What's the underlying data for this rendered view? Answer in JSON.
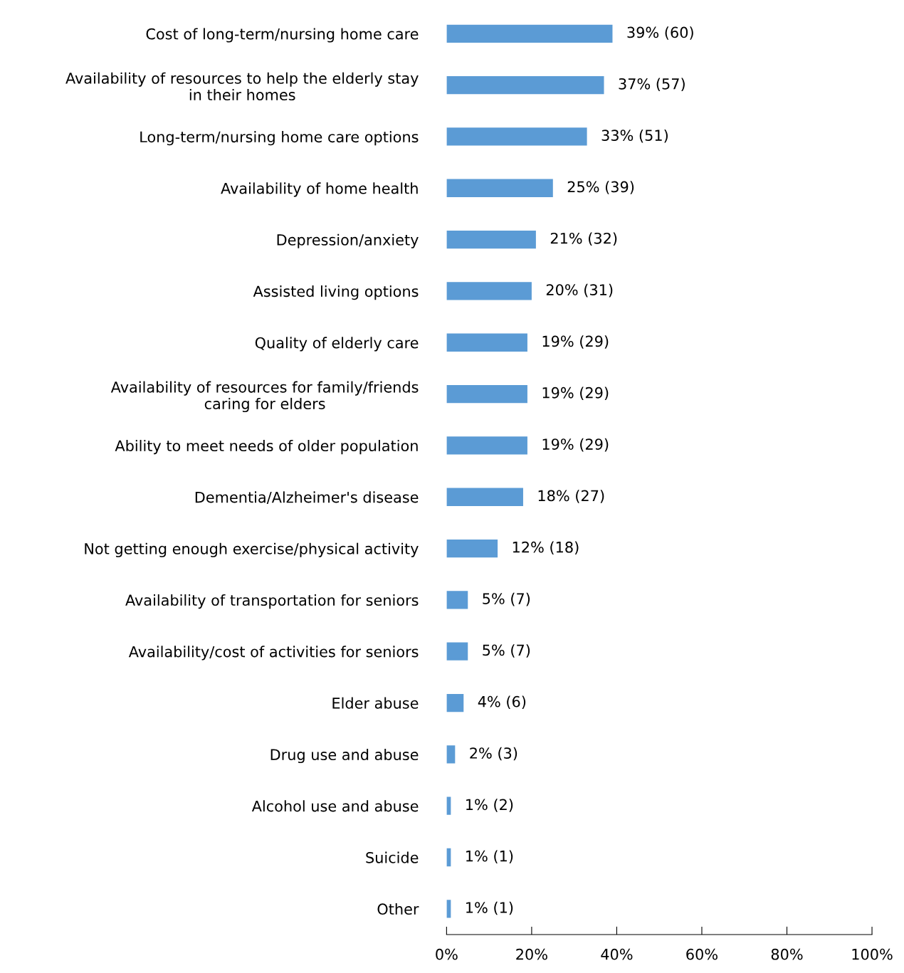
{
  "chart_data": {
    "type": "bar",
    "orientation": "horizontal",
    "categories": [
      "Cost of long-term/nursing home care",
      "Availability of resources to help the elderly stay\nin their homes",
      "Long-term/nursing home care options",
      "Availability of home health",
      "Depression/anxiety",
      "Assisted living options",
      "Quality of elderly care",
      "Availability of resources for family/friends\ncaring for elders",
      "Ability to meet needs of older population",
      "Dementia/Alzheimer's disease",
      "Not getting enough exercise/physical activity",
      "Availability of transportation for seniors",
      "Availability/cost of activities for seniors",
      "Elder abuse",
      "Drug use and abuse",
      "Alcohol use and abuse",
      "Suicide",
      "Other"
    ],
    "values": [
      39,
      37,
      33,
      25,
      21,
      20,
      19,
      19,
      19,
      18,
      12,
      5,
      5,
      4,
      2,
      1,
      1,
      1
    ],
    "value_labels": [
      "39% (60)",
      "37% (57)",
      "33% (51)",
      "25% (39)",
      "21% (32)",
      "20% (31)",
      "19% (29)",
      "19% (29)",
      "19% (29)",
      "18% (27)",
      "12% (18)",
      "5% (7)",
      "5% (7)",
      "4% (6)",
      "2% (3)",
      "1% (2)",
      "1% (1)",
      "1% (1)"
    ],
    "color": "#5b9bd5",
    "xlim": [
      0,
      100
    ],
    "xticks": [
      {
        "value": 0,
        "label": "0%"
      },
      {
        "value": 20,
        "label": "20%"
      },
      {
        "value": 40,
        "label": "40%"
      },
      {
        "value": 60,
        "label": "60%"
      },
      {
        "value": 80,
        "label": "80%"
      },
      {
        "value": 100,
        "label": "100%"
      }
    ],
    "grid": false
  }
}
